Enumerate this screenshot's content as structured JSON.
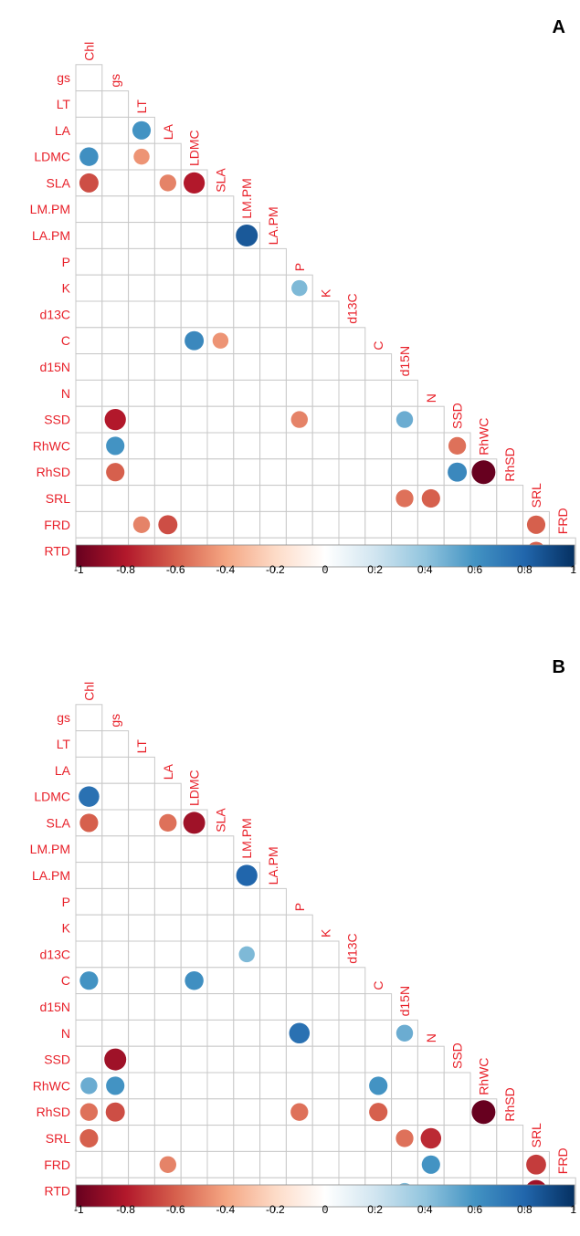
{
  "chart_data": [
    {
      "type": "heatmap",
      "panel_label": "A",
      "variables": [
        "Chl",
        "gs",
        "LT",
        "LA",
        "LDMC",
        "SLA",
        "LM.PM",
        "LA.PM",
        "P",
        "K",
        "d13C",
        "C",
        "d15N",
        "N",
        "SSD",
        "RhWC",
        "RhSD",
        "SRL",
        "FRD",
        "RTD"
      ],
      "colorbar_ticks": [
        "-1",
        "-0.8",
        "-0.6",
        "-0.4",
        "-0.2",
        "0",
        "0.2",
        "0.4",
        "0.6",
        "0.8",
        "1"
      ],
      "colorbar_range": [
        -1,
        1
      ],
      "correlations": [
        {
          "row": "LA",
          "col": "LT",
          "r": 0.6
        },
        {
          "row": "LDMC",
          "col": "Chl",
          "r": 0.62
        },
        {
          "row": "LDMC",
          "col": "LT",
          "r": -0.45
        },
        {
          "row": "SLA",
          "col": "Chl",
          "r": -0.65
        },
        {
          "row": "SLA",
          "col": "LA",
          "r": -0.5
        },
        {
          "row": "SLA",
          "col": "LDMC",
          "r": -0.8
        },
        {
          "row": "LA.PM",
          "col": "LM.PM",
          "r": 0.85
        },
        {
          "row": "K",
          "col": "P",
          "r": 0.45
        },
        {
          "row": "C",
          "col": "LDMC",
          "r": 0.65
        },
        {
          "row": "C",
          "col": "SLA",
          "r": -0.45
        },
        {
          "row": "SSD",
          "col": "gs",
          "r": -0.8
        },
        {
          "row": "SSD",
          "col": "P",
          "r": -0.5
        },
        {
          "row": "SSD",
          "col": "d15N",
          "r": 0.5
        },
        {
          "row": "RhWC",
          "col": "gs",
          "r": 0.6
        },
        {
          "row": "RhWC",
          "col": "SSD",
          "r": -0.55
        },
        {
          "row": "RhSD",
          "col": "gs",
          "r": -0.6
        },
        {
          "row": "RhSD",
          "col": "SSD",
          "r": 0.65
        },
        {
          "row": "RhSD",
          "col": "RhWC",
          "r": -1.0
        },
        {
          "row": "SRL",
          "col": "d15N",
          "r": -0.55
        },
        {
          "row": "SRL",
          "col": "N",
          "r": -0.6
        },
        {
          "row": "FRD",
          "col": "LT",
          "r": -0.5
        },
        {
          "row": "FRD",
          "col": "LA",
          "r": -0.65
        },
        {
          "row": "FRD",
          "col": "SRL",
          "r": -0.6
        },
        {
          "row": "RTD",
          "col": "SRL",
          "r": -0.6
        }
      ]
    },
    {
      "type": "heatmap",
      "panel_label": "B",
      "variables": [
        "Chl",
        "gs",
        "LT",
        "LA",
        "LDMC",
        "SLA",
        "LM.PM",
        "LA.PM",
        "P",
        "K",
        "d13C",
        "C",
        "d15N",
        "N",
        "SSD",
        "RhWC",
        "RhSD",
        "SRL",
        "FRD",
        "RTD"
      ],
      "colorbar_ticks": [
        "-1",
        "-0.8",
        "-0.6",
        "-0.4",
        "-0.2",
        "0",
        "0.2",
        "0.4",
        "0.6",
        "0.8",
        "1"
      ],
      "colorbar_range": [
        -1,
        1
      ],
      "correlations": [
        {
          "row": "LDMC",
          "col": "Chl",
          "r": 0.75
        },
        {
          "row": "SLA",
          "col": "Chl",
          "r": -0.6
        },
        {
          "row": "SLA",
          "col": "LA",
          "r": -0.55
        },
        {
          "row": "SLA",
          "col": "LDMC",
          "r": -0.85
        },
        {
          "row": "LA.PM",
          "col": "LM.PM",
          "r": 0.8
        },
        {
          "row": "d13C",
          "col": "LM.PM",
          "r": 0.45
        },
        {
          "row": "C",
          "col": "Chl",
          "r": 0.6
        },
        {
          "row": "C",
          "col": "LDMC",
          "r": 0.62
        },
        {
          "row": "N",
          "col": "P",
          "r": 0.75
        },
        {
          "row": "N",
          "col": "d15N",
          "r": 0.5
        },
        {
          "row": "SSD",
          "col": "gs",
          "r": -0.85
        },
        {
          "row": "RhWC",
          "col": "Chl",
          "r": 0.5
        },
        {
          "row": "RhWC",
          "col": "gs",
          "r": 0.6
        },
        {
          "row": "RhWC",
          "col": "C",
          "r": 0.6
        },
        {
          "row": "RhSD",
          "col": "Chl",
          "r": -0.55
        },
        {
          "row": "RhSD",
          "col": "gs",
          "r": -0.65
        },
        {
          "row": "RhSD",
          "col": "P",
          "r": -0.55
        },
        {
          "row": "RhSD",
          "col": "C",
          "r": -0.6
        },
        {
          "row": "RhSD",
          "col": "RhWC",
          "r": -1.0
        },
        {
          "row": "SRL",
          "col": "Chl",
          "r": -0.6
        },
        {
          "row": "SRL",
          "col": "d15N",
          "r": -0.55
        },
        {
          "row": "SRL",
          "col": "N",
          "r": -0.75
        },
        {
          "row": "FRD",
          "col": "LA",
          "r": -0.5
        },
        {
          "row": "FRD",
          "col": "N",
          "r": 0.6
        },
        {
          "row": "FRD",
          "col": "SRL",
          "r": -0.7
        },
        {
          "row": "RTD",
          "col": "d15N",
          "r": 0.45
        },
        {
          "row": "RTD",
          "col": "SRL",
          "r": -0.85
        }
      ]
    }
  ]
}
